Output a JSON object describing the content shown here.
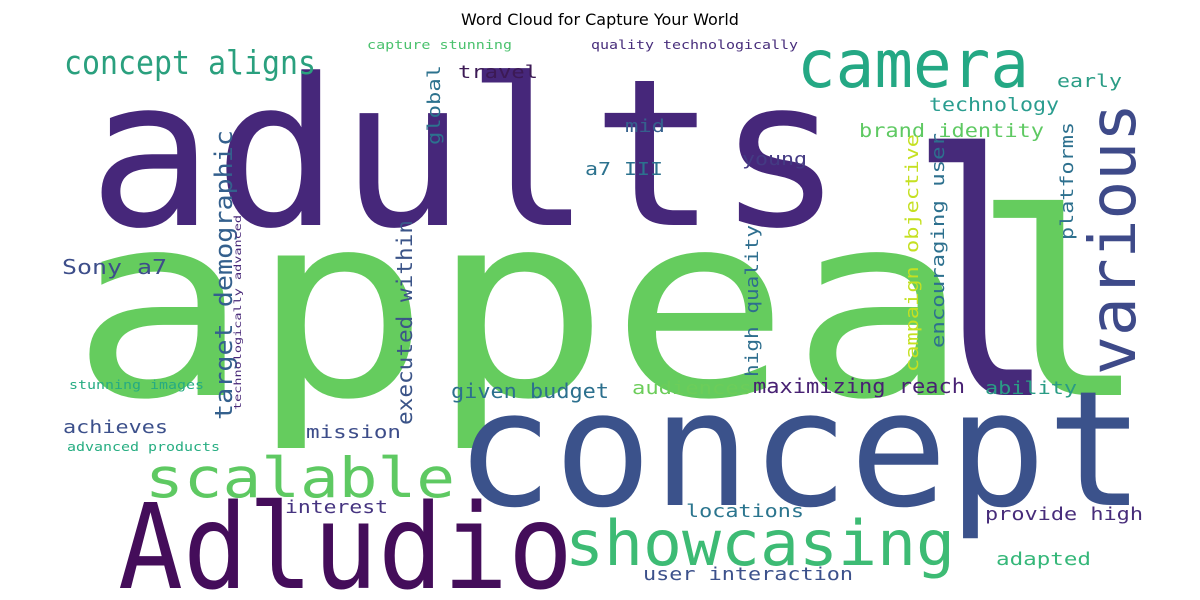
{
  "title": "Word Cloud for Capture Your World",
  "chart_data": {
    "type": "wordcloud",
    "title": "Word Cloud for Capture Your World",
    "words": [
      {
        "text": "appeal",
        "color": "#65cc5e"
      },
      {
        "text": "adults",
        "color": "#46277a"
      },
      {
        "text": "l",
        "color": "#462a7a"
      },
      {
        "text": "concept",
        "color": "#3b528b"
      },
      {
        "text": "Adludio",
        "color": "#440d5a"
      },
      {
        "text": "camera",
        "color": "#24a884"
      },
      {
        "text": "various",
        "color": "#3e4a89"
      },
      {
        "text": "showcasing",
        "color": "#3dbb74"
      },
      {
        "text": "scalable",
        "color": "#5ec962"
      },
      {
        "text": "concept aligns",
        "color": "#2aa07e"
      },
      {
        "text": "target demographic",
        "color": "#34608d"
      },
      {
        "text": "executed within",
        "color": "#3b5488"
      },
      {
        "text": "Sony a7",
        "color": "#3d4e8a"
      },
      {
        "text": "maximizing reach",
        "color": "#482173"
      },
      {
        "text": "given budget",
        "color": "#2c708e"
      },
      {
        "text": "brand identity",
        "color": "#5ec962"
      },
      {
        "text": "technology",
        "color": "#2a9d8f"
      },
      {
        "text": "travel",
        "color": "#3c1a55"
      },
      {
        "text": "mid",
        "color": "#35608d"
      },
      {
        "text": "a7 III",
        "color": "#2c728e"
      },
      {
        "text": "young",
        "color": "#443a83"
      },
      {
        "text": "global",
        "color": "#2c728e"
      },
      {
        "text": "early",
        "color": "#2a9c85"
      },
      {
        "text": "platforms",
        "color": "#2d708e"
      },
      {
        "text": "campaign objective",
        "color": "#c5e021"
      },
      {
        "text": "encouraging user",
        "color": "#2d708e"
      },
      {
        "text": "high quality",
        "color": "#2e6e8e"
      },
      {
        "text": "audiences",
        "color": "#6ccd5a"
      },
      {
        "text": "ability",
        "color": "#2a9c85"
      },
      {
        "text": "achieves",
        "color": "#3c508b"
      },
      {
        "text": "mission",
        "color": "#3d4d8a"
      },
      {
        "text": "interest",
        "color": "#463480"
      },
      {
        "text": "locations",
        "color": "#2b758e"
      },
      {
        "text": "provide high",
        "color": "#472c7a"
      },
      {
        "text": "adapted",
        "color": "#35b779"
      },
      {
        "text": "user interaction",
        "color": "#3c518b"
      },
      {
        "text": "capture stunning",
        "color": "#4ac16d"
      },
      {
        "text": "quality technologically",
        "color": "#472d7b"
      },
      {
        "text": "technologically advanced",
        "color": "#482878"
      },
      {
        "text": "stunning images",
        "color": "#25ab82"
      },
      {
        "text": "advanced products",
        "color": "#26ad81"
      }
    ]
  }
}
